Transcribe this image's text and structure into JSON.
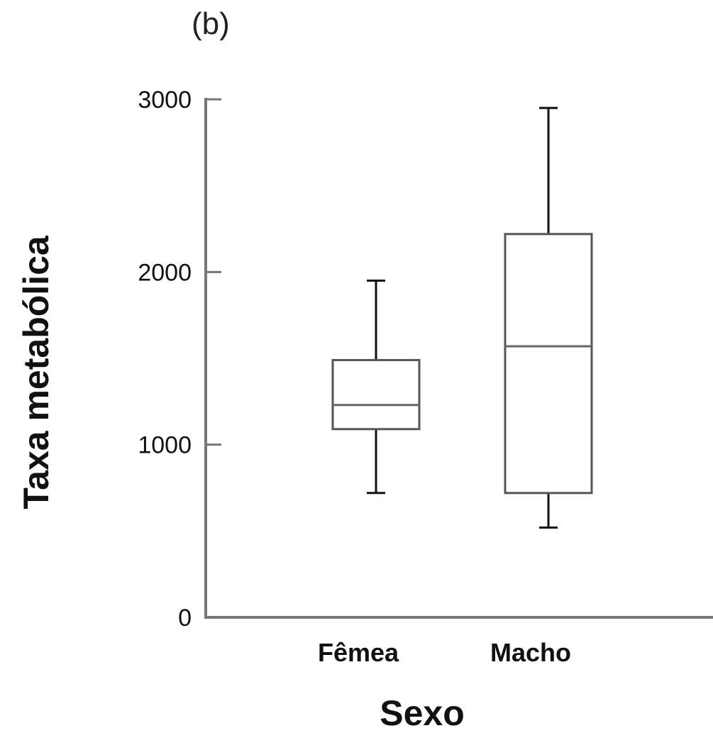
{
  "chart_data": {
    "type": "boxplot",
    "panel_label": "(b)",
    "xlabel": "Sexo",
    "ylabel": "Taxa metabólica",
    "ylim": [
      0,
      3000
    ],
    "yticks": [
      0,
      1000,
      2000,
      3000
    ],
    "ytick_labels": [
      "0",
      "1000",
      "2000",
      "3000"
    ],
    "categories": [
      "Fêmea",
      "Macho"
    ],
    "boxes": [
      {
        "category": "Fêmea",
        "whisker_low": 720,
        "q1": 1090,
        "median": 1230,
        "q3": 1490,
        "whisker_high": 1950
      },
      {
        "category": "Macho",
        "whisker_low": 520,
        "q1": 720,
        "median": 1570,
        "q3": 2220,
        "whisker_high": 2950
      }
    ],
    "grid": false,
    "legend": "none",
    "colors": {
      "axis": "#777777",
      "box": "#555555",
      "whisker": "#111111",
      "median": "#666666"
    }
  }
}
